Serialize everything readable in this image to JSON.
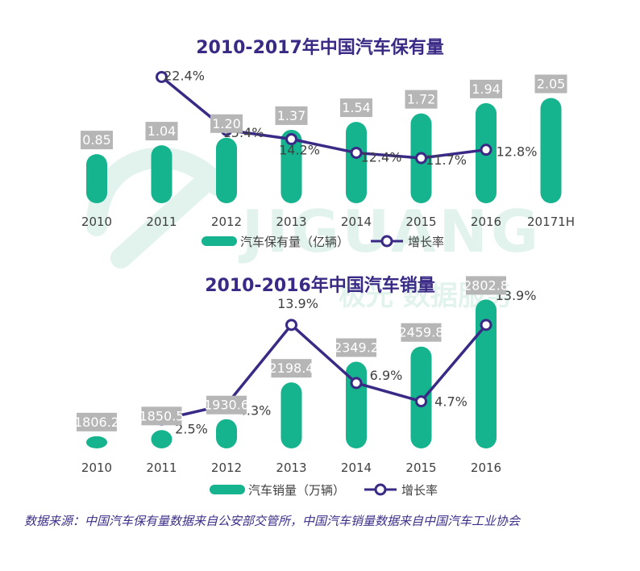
{
  "watermark": {
    "brand": "JIGUANG",
    "subtitle": "极光 数据服务",
    "color": "#1aa37a"
  },
  "source_note": "数据来源：中国汽车保有量数据来自公安部交管所，中国汽车销量数据来自中国汽车工业协会",
  "colors": {
    "bar": "#16b38f",
    "line": "#3a2a86",
    "label_bg": "#b6b6b6",
    "title": "#3a2a86"
  },
  "chart_data": [
    {
      "type": "bar+line",
      "title": "2010-2017年中国汽车保有量",
      "categories": [
        "2010",
        "2011",
        "2012",
        "2013",
        "2014",
        "2015",
        "2016",
        "20171H"
      ],
      "series": [
        {
          "name": "汽车保有量（亿辆）",
          "type": "bar",
          "values": [
            0.85,
            1.04,
            1.2,
            1.37,
            1.54,
            1.72,
            1.94,
            2.05
          ],
          "labels": [
            "0.85",
            "1.04",
            "1.20",
            "1.37",
            "1.54",
            "1.72",
            "1.94",
            "2.05"
          ]
        },
        {
          "name": "增长率",
          "type": "line",
          "values": [
            null,
            22.4,
            15.4,
            14.2,
            12.4,
            11.7,
            12.8,
            null
          ],
          "labels": [
            "",
            "22.4%",
            "15.4%",
            "14.2%",
            "12.4%",
            "11.7%",
            "12.8%",
            ""
          ]
        }
      ],
      "legend": "bottom"
    },
    {
      "type": "bar+line",
      "title": "2010-2016年中国汽车销量",
      "categories": [
        "2010",
        "2011",
        "2012",
        "2013",
        "2014",
        "2015",
        "2016"
      ],
      "series": [
        {
          "name": "汽车销量（万辆）",
          "type": "bar",
          "values": [
            1806.2,
            1850.5,
            1930.6,
            2198.4,
            2349.2,
            2459.8,
            2802.8
          ],
          "labels": [
            "1806.2",
            "1850.5",
            "1930.6",
            "2198.4",
            "2349.2",
            "2459.8",
            "2802.8"
          ]
        },
        {
          "name": "增长率",
          "type": "line",
          "values": [
            null,
            2.5,
            4.3,
            13.9,
            6.9,
            4.7,
            13.9
          ],
          "labels": [
            "",
            "2.5%",
            "4.3%",
            "13.9%",
            "6.9%",
            "4.7%",
            "13.9%"
          ]
        }
      ],
      "legend": "bottom"
    }
  ]
}
